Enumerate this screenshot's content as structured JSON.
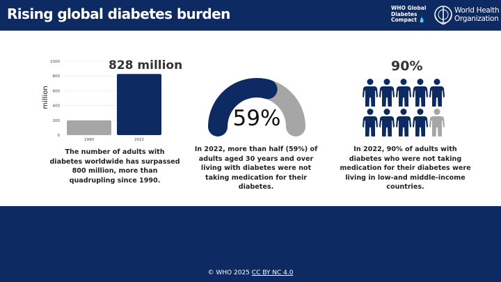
{
  "header": {
    "title": "Rising global diabetes burden",
    "compact_logo": "WHO Global Diabetes Compact",
    "org_logo": "World Health Organization"
  },
  "colors": {
    "navy": "#0d2a62",
    "gray": "#a6a6a6"
  },
  "panel1": {
    "headline": "828 million",
    "caption": "The number of adults with diabetes worldwide has surpassed 800 million, more than quadrupling since 1990."
  },
  "chart_data": {
    "type": "bar",
    "categories": [
      "1990",
      "2022"
    ],
    "values": [
      198,
      828
    ],
    "ylabel": "million",
    "ylim": [
      0,
      1000
    ],
    "yticks": [
      "0",
      "200",
      "400",
      "600",
      "800",
      "1000"
    ],
    "grid": true,
    "colors": [
      "#a6a6a6",
      "#0d2a62"
    ]
  },
  "panel2": {
    "value_label": "59%",
    "value": 59,
    "caption": "In 2022, more than half (59%) of adults aged 30 years and over living with diabetes were not taking medication for their diabetes."
  },
  "panel3": {
    "headline": "90%",
    "filled": 9,
    "total": 10,
    "caption": "In 2022, 90% of adults with diabetes who were not taking medication for their diabetes were living in low-and middle-income countries."
  },
  "footer": {
    "copyright": "© WHO 2025",
    "license": "CC BY NC 4.0"
  }
}
